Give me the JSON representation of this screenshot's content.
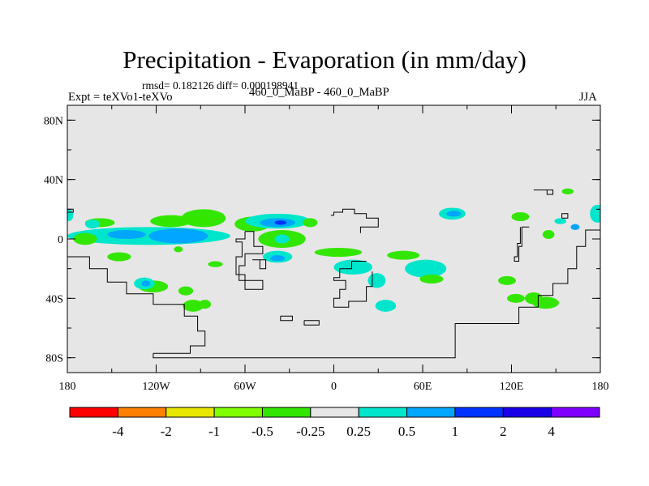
{
  "chart_data": {
    "type": "heatmap",
    "title": "Precipitation - Evaporation (in mm/day)",
    "stats_line": "rmsd= 0.182126 diff= 0.000198941",
    "left_label": "Expt = teXVo1-teXVo",
    "center_label": "460_0_MaBP - 460_0_MaBP",
    "right_label": "JJA",
    "x_range": [
      -180,
      180
    ],
    "y_range": [
      -90,
      90
    ],
    "x_ticks": [
      {
        "value": -180,
        "label": "180"
      },
      {
        "value": -120,
        "label": "120W"
      },
      {
        "value": -60,
        "label": "60W"
      },
      {
        "value": 0,
        "label": "0"
      },
      {
        "value": 60,
        "label": "60E"
      },
      {
        "value": 120,
        "label": "120E"
      },
      {
        "value": 180,
        "label": "180"
      }
    ],
    "y_ticks": [
      {
        "value": 80,
        "label": "80N"
      },
      {
        "value": 40,
        "label": "40N"
      },
      {
        "value": 0,
        "label": "0"
      },
      {
        "value": -40,
        "label": "40S"
      },
      {
        "value": -80,
        "label": "80S"
      }
    ],
    "background_color": "#e6e6e6",
    "colorbar": {
      "boundaries": [
        "-4",
        "-2",
        "-1",
        "-0.5",
        "-0.25",
        "0.25",
        "0.5",
        "1",
        "2",
        "4"
      ],
      "colors": [
        "#ff0000",
        "#ff8000",
        "#e6e600",
        "#80ff00",
        "#33e600",
        "#e6e6e6",
        "#00e6cc",
        "#00a6ff",
        "#0033ff",
        "#1a00e6",
        "#8000ff"
      ]
    },
    "anomaly_regions": [
      {
        "name": "west-pacific-green-1",
        "lon": -158,
        "lat": 11,
        "rlon": 10,
        "rlat": 3,
        "value": -0.35
      },
      {
        "name": "west-pacific-cyan-1",
        "lon": -163,
        "lat": 10,
        "rlon": 5,
        "rlat": 3,
        "value": 0.3
      },
      {
        "name": "central-pacific-green",
        "lon": -110,
        "lat": 12,
        "rlon": 14,
        "rlat": 4,
        "value": -0.35
      },
      {
        "name": "north-america-green",
        "lon": -88,
        "lat": 14,
        "rlon": 15,
        "rlat": 6,
        "value": -0.35
      },
      {
        "name": "north-america-band",
        "lon": -55,
        "lat": 10,
        "rlon": 12,
        "rlat": 5,
        "value": -0.35
      },
      {
        "name": "north-atlantic-cyan",
        "lon": -38,
        "lat": 12,
        "rlon": 22,
        "rlat": 5,
        "value": 0.3
      },
      {
        "name": "north-atlantic-blue",
        "lon": -38,
        "lat": 11,
        "rlon": 12,
        "rlat": 3,
        "value": 0.7
      },
      {
        "name": "north-atlantic-deep",
        "lon": -36,
        "lat": 11,
        "rlon": 4,
        "rlat": 1.5,
        "value": 1.5
      },
      {
        "name": "east-atlantic-green",
        "lon": -16,
        "lat": 11,
        "rlon": 5,
        "rlat": 3,
        "value": -0.35
      },
      {
        "name": "equatorial-pacific-band",
        "lon": -125,
        "lat": 2,
        "rlon": 55,
        "rlat": 6,
        "value": 0.3
      },
      {
        "name": "equatorial-pacific-core",
        "lon": -105,
        "lat": 2,
        "rlon": 20,
        "rlat": 5,
        "value": 0.7
      },
      {
        "name": "equatorial-pacific-east",
        "lon": -140,
        "lat": 3,
        "rlon": 13,
        "rlat": 3,
        "value": 0.7
      },
      {
        "name": "west-pacific-green-eq",
        "lon": -168,
        "lat": 0,
        "rlon": 8,
        "rlat": 4,
        "value": -0.35
      },
      {
        "name": "south-america-green",
        "lon": -35,
        "lat": 0,
        "rlon": 16,
        "rlat": 6,
        "value": -0.35
      },
      {
        "name": "south-america-cyan",
        "lon": -35,
        "lat": 0,
        "rlon": 5,
        "rlat": 3,
        "value": 0.3
      },
      {
        "name": "amazon-cyan",
        "lon": -38,
        "lat": -12,
        "rlon": 10,
        "rlat": 4,
        "value": 0.3
      },
      {
        "name": "amazon-blue",
        "lon": -38,
        "lat": -13,
        "rlon": 5,
        "rlat": 2,
        "value": 0.7
      },
      {
        "name": "atlantic-green-south",
        "lon": 3,
        "lat": -9,
        "rlon": 16,
        "rlat": 3,
        "value": -0.35
      },
      {
        "name": "africa-cyan",
        "lon": 13,
        "lat": -19,
        "rlon": 13,
        "rlat": 5,
        "value": 0.3
      },
      {
        "name": "africa-cyan-2",
        "lon": 29,
        "lat": -28,
        "rlon": 6,
        "rlat": 5,
        "value": 0.3
      },
      {
        "name": "south-africa-cyan",
        "lon": 35,
        "lat": -45,
        "rlon": 7,
        "rlat": 4,
        "value": 0.3
      },
      {
        "name": "indian-ocean-green",
        "lon": 47,
        "lat": -11,
        "rlon": 11,
        "rlat": 3,
        "value": -0.35
      },
      {
        "name": "indian-ocean-blue",
        "lon": 60,
        "lat": -20,
        "rlon": 9,
        "rlat": 4,
        "value": 0.7
      },
      {
        "name": "indian-ocean-cyan",
        "lon": 62,
        "lat": -20,
        "rlon": 14,
        "rlat": 6,
        "value": 0.3
      },
      {
        "name": "india-green",
        "lon": 66,
        "lat": -27,
        "rlon": 8,
        "rlat": 3,
        "value": -0.35
      },
      {
        "name": "south-indian-green",
        "lon": 117,
        "lat": -28,
        "rlon": 6,
        "rlat": 3,
        "value": -0.35
      },
      {
        "name": "south-indian-green-2",
        "lon": 123,
        "lat": -40,
        "rlon": 6,
        "rlat": 3,
        "value": -0.35
      },
      {
        "name": "southeast-green",
        "lon": 143,
        "lat": -43,
        "rlon": 9,
        "rlat": 4,
        "value": -0.35
      },
      {
        "name": "southeast-green-2",
        "lon": 135,
        "lat": -40,
        "rlon": 6,
        "rlat": 4,
        "value": -0.35
      },
      {
        "name": "south-pacific-green-1",
        "lon": -145,
        "lat": -12,
        "rlon": 8,
        "rlat": 3,
        "value": -0.35
      },
      {
        "name": "south-pacific-green-2",
        "lon": -122,
        "lat": -32,
        "rlon": 10,
        "rlat": 4,
        "value": -0.35
      },
      {
        "name": "south-pacific-cyan",
        "lon": -128,
        "lat": -30,
        "rlon": 7,
        "rlat": 4,
        "value": 0.3
      },
      {
        "name": "south-pacific-blue",
        "lon": -127,
        "lat": -30,
        "rlon": 3,
        "rlat": 2,
        "value": 0.7
      },
      {
        "name": "south-pacific-green-3",
        "lon": -95,
        "lat": -45,
        "rlon": 7,
        "rlat": 4,
        "value": -0.35
      },
      {
        "name": "southern-ocean-green",
        "lon": -87,
        "lat": -44,
        "rlon": 4,
        "rlat": 3,
        "value": -0.35
      },
      {
        "name": "south-pacific-green-4",
        "lon": -100,
        "lat": -35,
        "rlon": 5,
        "rlat": 3,
        "value": -0.35
      },
      {
        "name": "east-pacific-cyan-1",
        "lon": 80,
        "lat": 17,
        "rlon": 9,
        "rlat": 4,
        "value": 0.3
      },
      {
        "name": "east-pacific-blue-1",
        "lon": 81,
        "lat": 17,
        "rlon": 5,
        "rlat": 2,
        "value": 0.7
      },
      {
        "name": "east-pacific-green-1",
        "lon": 126,
        "lat": 15,
        "rlon": 6,
        "rlat": 3,
        "value": -0.35
      },
      {
        "name": "east-pacific-cyan-2",
        "lon": 153,
        "lat": 12,
        "rlon": 4,
        "rlat": 2,
        "value": 0.3
      },
      {
        "name": "far-east-cyan",
        "lon": 178,
        "lat": 17,
        "rlon": 5,
        "rlat": 6,
        "value": 0.3
      },
      {
        "name": "far-west-cyan",
        "lon": -179,
        "lat": 16,
        "rlon": 3,
        "rlat": 4,
        "value": 0.3
      },
      {
        "name": "far-east-green",
        "lon": 145,
        "lat": 3,
        "rlon": 4,
        "rlat": 3,
        "value": -0.35
      },
      {
        "name": "far-east-blue",
        "lon": 163,
        "lat": 8,
        "rlon": 3,
        "rlat": 2,
        "value": 0.7
      },
      {
        "name": "far-east-green-2",
        "lon": 158,
        "lat": 32,
        "rlon": 4,
        "rlat": 2,
        "value": -0.35
      },
      {
        "name": "atlantic-green-spot",
        "lon": -105,
        "lat": -7,
        "rlon": 3,
        "rlat": 2,
        "value": -0.35
      },
      {
        "name": "mid-atlantic-green",
        "lon": -80,
        "lat": -17,
        "rlon": 5,
        "rlat": 2,
        "value": -0.35
      }
    ],
    "coastlines": [
      {
        "name": "antarctica-outline",
        "points": [
          [
            -122,
            -77
          ],
          [
            -122,
            -80
          ],
          [
            82,
            -80
          ],
          [
            82,
            -57
          ],
          [
            125,
            -57
          ],
          [
            125,
            -46
          ],
          [
            138,
            -46
          ],
          [
            138,
            -38
          ],
          [
            148,
            -38
          ],
          [
            148,
            -30
          ],
          [
            158,
            -30
          ],
          [
            158,
            -20
          ],
          [
            164,
            -20
          ],
          [
            164,
            -5
          ],
          [
            170,
            -5
          ],
          [
            170,
            6
          ],
          [
            180,
            6
          ]
        ]
      },
      {
        "name": "antarctic-ridge",
        "points": [
          [
            -122,
            -77
          ],
          [
            -97,
            -77
          ],
          [
            -97,
            -72
          ],
          [
            -87,
            -72
          ],
          [
            -87,
            -62
          ],
          [
            -92,
            -62
          ],
          [
            -92,
            -52
          ],
          [
            -101,
            -52
          ],
          [
            -101,
            -44
          ],
          [
            -122,
            -44
          ],
          [
            -122,
            -37
          ],
          [
            -140,
            -37
          ],
          [
            -140,
            -29
          ],
          [
            -153,
            -29
          ],
          [
            -153,
            -20
          ],
          [
            -165,
            -20
          ],
          [
            -165,
            -12
          ],
          [
            -180,
            -12
          ]
        ]
      },
      {
        "name": "south-america-outline",
        "points": [
          [
            -60,
            5
          ],
          [
            -54,
            5
          ],
          [
            -54,
            -5
          ],
          [
            -48,
            -5
          ],
          [
            -48,
            -10
          ],
          [
            -60,
            -10
          ],
          [
            -60,
            -18
          ],
          [
            -64,
            -18
          ],
          [
            -64,
            -28
          ],
          [
            -48,
            -28
          ],
          [
            -48,
            -34
          ],
          [
            -60,
            -34
          ],
          [
            -60,
            -24
          ],
          [
            -66,
            -24
          ],
          [
            -66,
            -12
          ],
          [
            -62,
            -12
          ],
          [
            -62,
            -2
          ],
          [
            -66,
            -2
          ],
          [
            -66,
            0
          ],
          [
            -60,
            0
          ],
          [
            -60,
            5
          ]
        ]
      },
      {
        "name": "small-islands",
        "points": [
          [
            -55,
            -14
          ],
          [
            -46,
            -14
          ],
          [
            -46,
            -20
          ],
          [
            -50,
            -20
          ],
          [
            -50,
            -14
          ]
        ]
      },
      {
        "name": "africa-outline",
        "points": [
          [
            -2,
            16
          ],
          [
            0,
            16
          ],
          [
            0,
            18
          ],
          [
            6,
            18
          ],
          [
            6,
            20
          ],
          [
            14,
            20
          ],
          [
            14,
            17
          ],
          [
            22,
            17
          ],
          [
            22,
            14
          ],
          [
            30,
            14
          ],
          [
            30,
            8
          ],
          [
            18,
            8
          ],
          [
            18,
            4
          ]
        ]
      },
      {
        "name": "africa-south",
        "points": [
          [
            22,
            -15
          ],
          [
            12,
            -15
          ],
          [
            12,
            -20
          ],
          [
            4,
            -20
          ],
          [
            4,
            -26
          ],
          [
            0,
            -26
          ],
          [
            0,
            -28
          ],
          [
            8,
            -28
          ],
          [
            8,
            -34
          ],
          [
            4,
            -34
          ],
          [
            4,
            -40
          ],
          [
            0,
            -40
          ],
          [
            0,
            -46
          ],
          [
            10,
            -46
          ],
          [
            10,
            -42
          ],
          [
            22,
            -42
          ],
          [
            22,
            -32
          ],
          [
            26,
            -32
          ],
          [
            26,
            -22
          ]
        ]
      },
      {
        "name": "island-south-1",
        "points": [
          [
            -20,
            -55
          ],
          [
            -10,
            -55
          ],
          [
            -10,
            -58
          ],
          [
            -20,
            -58
          ],
          [
            -20,
            -55
          ]
        ]
      },
      {
        "name": "island-south-2",
        "points": [
          [
            -36,
            -52
          ],
          [
            -28,
            -52
          ],
          [
            -28,
            -55
          ],
          [
            -36,
            -55
          ],
          [
            -36,
            -52
          ]
        ]
      },
      {
        "name": "asia-east-outline",
        "points": [
          [
            132,
            8
          ],
          [
            127,
            8
          ],
          [
            127,
            -5
          ],
          [
            125,
            -5
          ],
          [
            125,
            -15
          ],
          [
            122,
            -15
          ],
          [
            122,
            -12
          ],
          [
            124,
            -12
          ],
          [
            124,
            -3
          ],
          [
            126,
            -3
          ],
          [
            126,
            8
          ]
        ]
      },
      {
        "name": "asia-northeast",
        "points": [
          [
            135,
            33
          ],
          [
            148,
            33
          ],
          [
            148,
            30
          ],
          [
            144,
            30
          ],
          [
            144,
            33
          ]
        ]
      },
      {
        "name": "pacific-island-1",
        "points": [
          [
            154,
            14
          ],
          [
            158,
            14
          ],
          [
            158,
            17
          ],
          [
            154,
            17
          ],
          [
            154,
            14
          ]
        ]
      },
      {
        "name": "pacific-island-2",
        "points": [
          [
            -180,
            20
          ],
          [
            -176,
            20
          ],
          [
            -176,
            18
          ],
          [
            -180,
            18
          ]
        ]
      }
    ]
  }
}
